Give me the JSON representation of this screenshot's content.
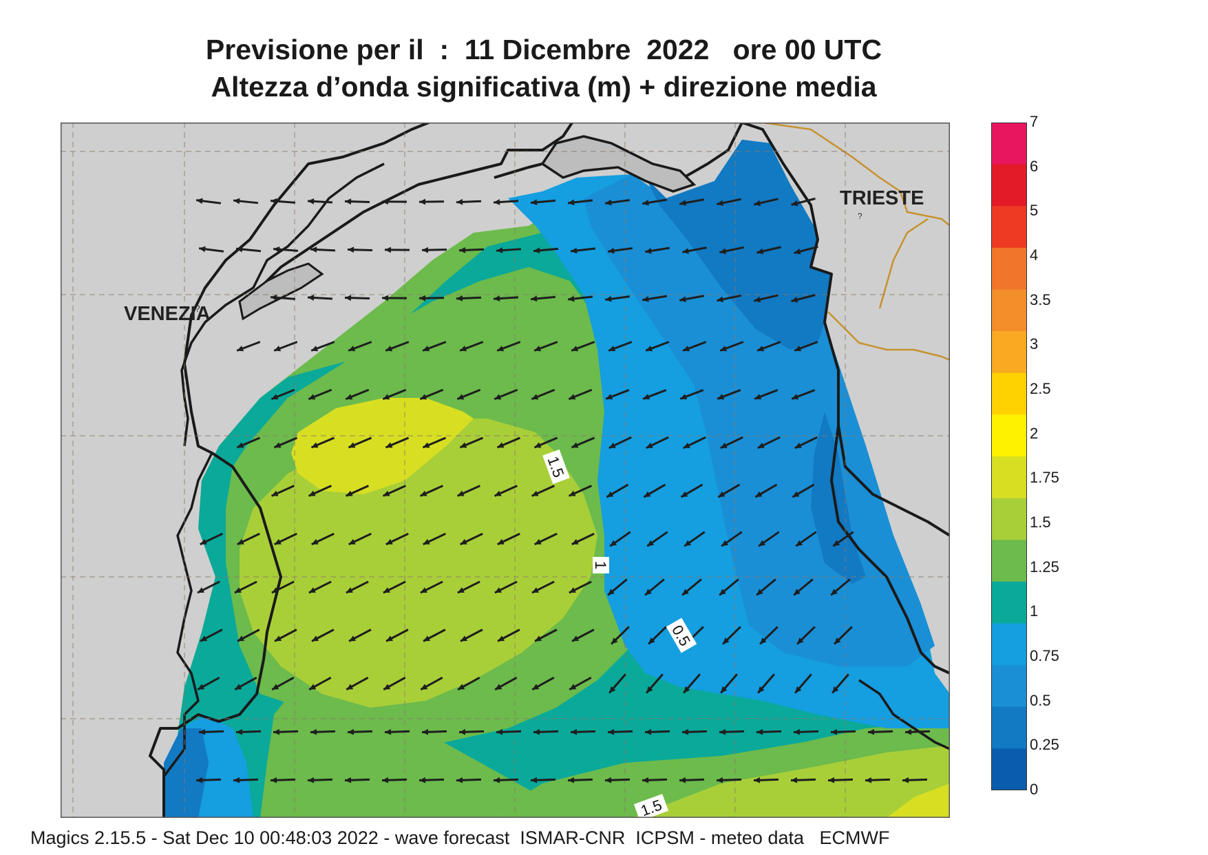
{
  "title_line1": "Previsione per il  :  11 Dicembre  2022   ore 00 UTC",
  "title_line2": "Altezza d’onda significativa (m) + direzione media",
  "cities": {
    "venezia": "VENEZIA",
    "trieste": "TRIESTE"
  },
  "contour_labels": {
    "c15_north": "1.5",
    "c1": "1",
    "c05": "0.5",
    "c15_south": "1.5"
  },
  "legend": {
    "labels": [
      "7",
      "6",
      "5",
      "4",
      "3.5",
      "3",
      "2.5",
      "2",
      "1.75",
      "1.5",
      "1.25",
      "1",
      "0.75",
      "0.5",
      "0.25",
      "0"
    ],
    "colors": [
      "#e8155f",
      "#e31a28",
      "#ee3a22",
      "#f1762a",
      "#f38f2a",
      "#f9aa22",
      "#fed200",
      "#fff200",
      "#d8df22",
      "#a9cf38",
      "#6cbb4c",
      "#0aa99a",
      "#159ee0",
      "#1a8fd6",
      "#1279c3",
      "#0a5cae"
    ]
  },
  "footer": "Magics 2.15.5 - Sat Dec 10 00:48:03 2022 - wave forecast  ISMAR-CNR  ICPSM - meteo data   ECMWF",
  "colors": {
    "land": "#cfcfcf",
    "coast": "#1a1a1a",
    "border": "#c6922e",
    "arrow": "#1e1e1e"
  }
}
